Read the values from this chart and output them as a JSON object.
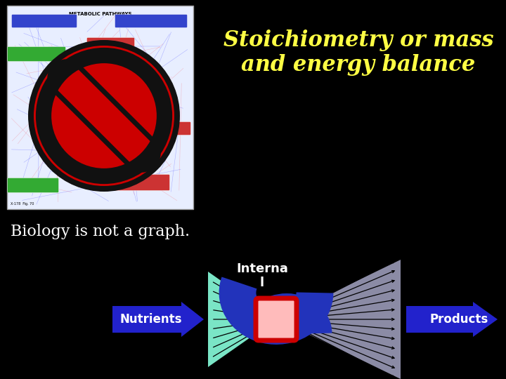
{
  "bg_color": "#000000",
  "title_text": "Stoichiometry or mass\nand energy balance",
  "title_color": "#ffff44",
  "title_fontsize": 22,
  "biology_text": "Biology is not a graph.",
  "biology_color": "#ffffff",
  "biology_fontsize": 16,
  "nutrients_text": "Nutrients",
  "products_text": "Products",
  "internal_text": "Interna\nl",
  "arrow_color": "#2222cc",
  "internal_circle_color": "#2233bb",
  "cell_fill_color": "#ffbbbb",
  "cell_border_color": "#cc0000",
  "fan_left_color": "#88ffdd",
  "fan_right_color": "#bbbbdd",
  "img_bg": "#e8eeff",
  "no_sign_red": "#cc0000",
  "no_sign_black": "#111111"
}
